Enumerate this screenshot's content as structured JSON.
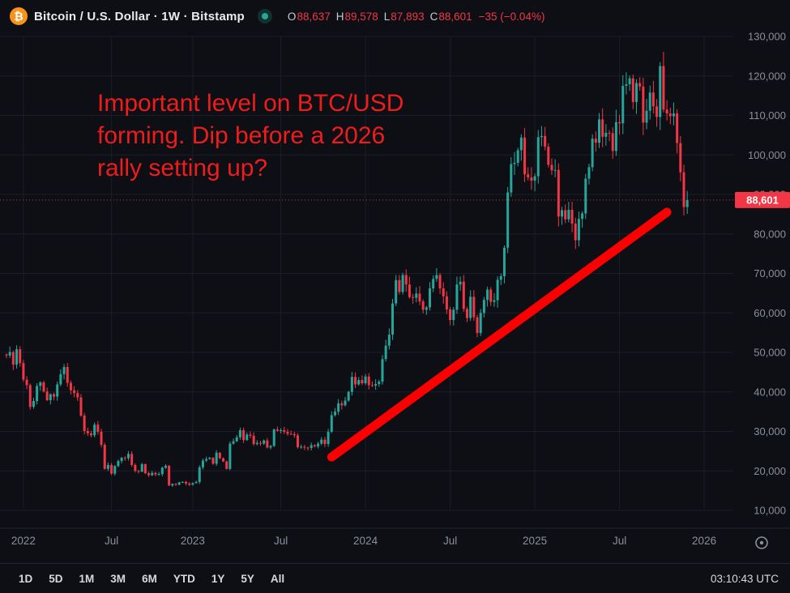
{
  "header": {
    "bitcoin_glyph": "₿",
    "symbol_title": "Bitcoin / U.S. Dollar · 1W · Bitstamp",
    "ohlc": {
      "o_label": "O",
      "o": "88,637",
      "h_label": "H",
      "h": "89,578",
      "l_label": "L",
      "l": "87,893",
      "c_label": "C",
      "c": "88,601",
      "change": "−35 (−0.04%)"
    }
  },
  "annotation": {
    "lines": [
      "Important level on BTC/USD",
      "forming. Dip before a 2026",
      "rally setting up?"
    ],
    "color": "#ef1c1c"
  },
  "chart_data": {
    "type": "candlestick",
    "title": "Bitcoin / U.S. Dollar weekly candles, Bitstamp",
    "symbol": "BTC/USD",
    "interval": "1W",
    "exchange": "Bitstamp",
    "current_price": 88601,
    "current_price_label": "88,601",
    "ohlc_last": {
      "open": 88637,
      "high": 89578,
      "low": 87893,
      "close": 88601,
      "change": -35,
      "change_pct": -0.04
    },
    "y_axis": {
      "min": 10000,
      "max": 130000,
      "tick_step": 10000,
      "tick_labels": [
        "130,000",
        "120,000",
        "110,000",
        "100,000",
        "90,000",
        "80,000",
        "70,000",
        "60,000",
        "50,000",
        "40,000",
        "30,000",
        "20,000",
        "10,000"
      ]
    },
    "x_ticks": [
      {
        "label": "2022",
        "week": 5
      },
      {
        "label": "Jul",
        "week": 31
      },
      {
        "label": "2023",
        "week": 55
      },
      {
        "label": "Jul",
        "week": 81
      },
      {
        "label": "2024",
        "week": 106
      },
      {
        "label": "Jul",
        "week": 131
      },
      {
        "label": "2025",
        "week": 156
      },
      {
        "label": "Jul",
        "week": 181
      },
      {
        "label": "2026",
        "week": 206
      }
    ],
    "weekly_closes": [
      49200,
      50100,
      46900,
      50800,
      47300,
      43100,
      41700,
      36200,
      37700,
      41500,
      42400,
      40100,
      37900,
      39400,
      38800,
      41900,
      44500,
      46300,
      42300,
      40400,
      39700,
      38600,
      34000,
      30100,
      29500,
      29000,
      31700,
      29900,
      26600,
      20500,
      21500,
      19300,
      21200,
      22500,
      23300,
      23200,
      24300,
      21500,
      20000,
      19800,
      21700,
      19400,
      18900,
      19500,
      19100,
      19200,
      20800,
      21300,
      16300,
      16700,
      16500,
      17100,
      17200,
      16800,
      16500,
      16900,
      17200,
      20900,
      22600,
      23000,
      23300,
      21800,
      24600,
      23200,
      22400,
      20500,
      26900,
      27500,
      28500,
      30300,
      27800,
      29200,
      28900,
      26800,
      27100,
      26900,
      27700,
      25900,
      26300,
      30500,
      30200,
      30300,
      29900,
      29400,
      29300,
      29000,
      26000,
      26100,
      25900,
      25800,
      26500,
      26200,
      26900,
      27900,
      26800,
      29900,
      34100,
      35000,
      37100,
      36600,
      37800,
      40000,
      43800,
      41900,
      43000,
      42200,
      43900,
      41700,
      41600,
      42000,
      42600,
      48300,
      51700,
      54500,
      62400,
      68300,
      65300,
      69600,
      67200,
      64000,
      63800,
      64900,
      62900,
      60800,
      61400,
      66200,
      68600,
      69600,
      66200,
      64200,
      60900,
      58200,
      60800,
      67200,
      67900,
      61000,
      58700,
      64100,
      58900,
      54900,
      60000,
      63300,
      65900,
      62800,
      63200,
      68400,
      69300,
      76500,
      90500,
      97700,
      98000,
      101200,
      104400,
      95100,
      94300,
      93500,
      94600,
      104500,
      104800,
      102100,
      97500,
      96100,
      96200,
      84400,
      86000,
      83700,
      86100,
      82600,
      78400,
      83800,
      85200,
      94000,
      96900,
      104100,
      103100,
      109000,
      104600,
      105600,
      105500,
      101000,
      108300,
      108000,
      117500,
      117900,
      119400,
      113400,
      118200,
      117300,
      108200,
      111200,
      115800,
      112300,
      109600,
      122500,
      111500,
      110500,
      109800,
      110500,
      103000,
      95600,
      86800,
      88601
    ],
    "trendline": {
      "from": {
        "week": 96,
        "price": 23500
      },
      "to": {
        "week": 195,
        "price": 85500
      },
      "color": "#fb0000",
      "width": 11
    },
    "colors": {
      "up": "#26a69a",
      "down": "#f23645",
      "price_line": "#f23645",
      "grid": "#1a1e28",
      "axis_text": "#8a8f9a",
      "accent_orange": "#f7931a"
    },
    "legend_position": "none",
    "grid": true
  },
  "toolbar": {
    "ranges": [
      "1D",
      "5D",
      "1M",
      "3M",
      "6M",
      "YTD",
      "1Y",
      "5Y",
      "All"
    ],
    "timezone": "03:10:43 UTC"
  }
}
